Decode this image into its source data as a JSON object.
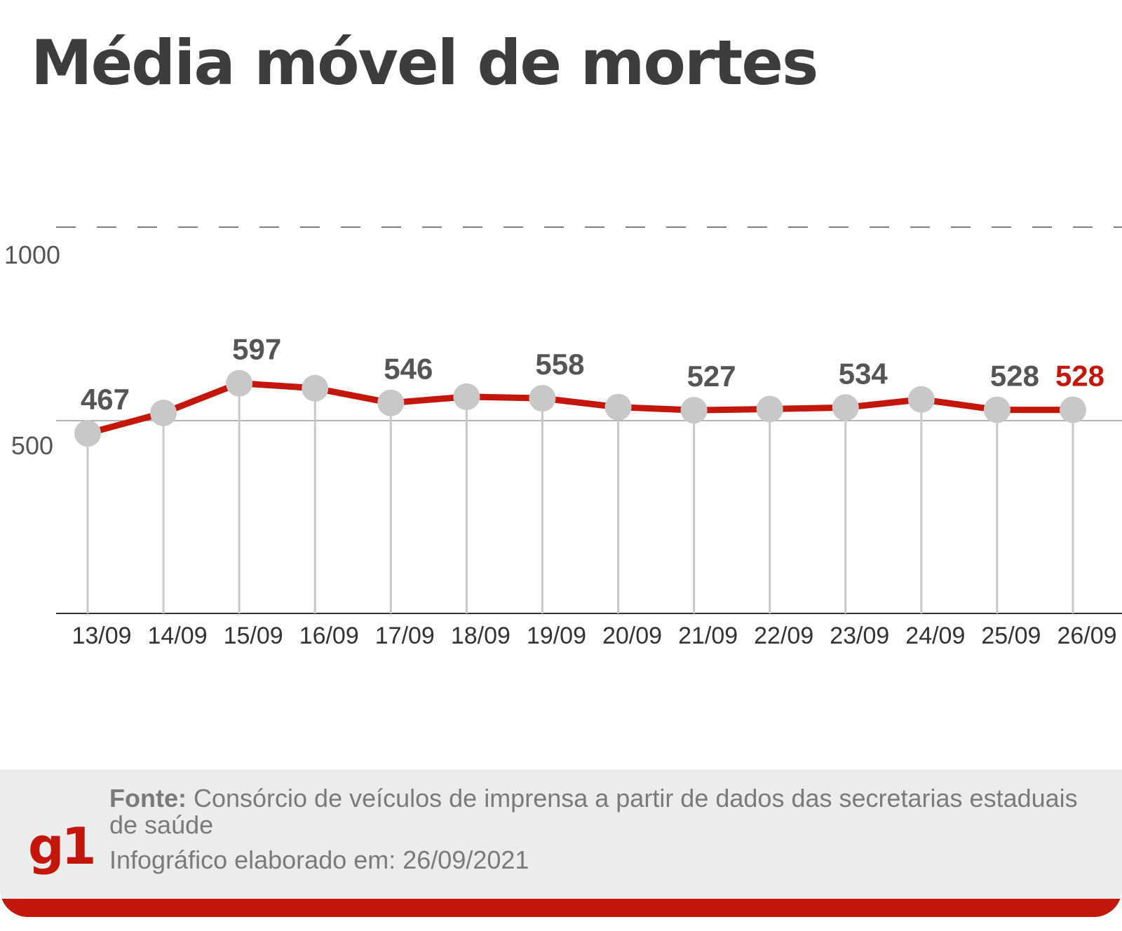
{
  "title": "Média móvel  de mortes",
  "chart_data": {
    "type": "line",
    "x": [
      "13/09",
      "14/09",
      "15/09",
      "16/09",
      "17/09",
      "18/09",
      "19/09",
      "20/09",
      "21/09",
      "22/09",
      "23/09",
      "24/09",
      "25/09",
      "26/09"
    ],
    "series": [
      {
        "values": [
          467,
          520,
          597,
          584,
          546,
          562,
          558,
          535,
          527,
          530,
          534,
          555,
          528,
          528
        ]
      }
    ],
    "labels": [
      {
        "index": 0,
        "text": "467"
      },
      {
        "index": 2,
        "text": "597"
      },
      {
        "index": 4,
        "text": "546"
      },
      {
        "index": 6,
        "text": "558"
      },
      {
        "index": 8,
        "text": "527"
      },
      {
        "index": 10,
        "text": "534"
      },
      {
        "index": 12,
        "text": "528"
      },
      {
        "index": 13,
        "text": "528",
        "highlight": true
      }
    ],
    "yticks": [
      "500",
      "1000"
    ],
    "ylim": [
      0,
      1000
    ],
    "colors": {
      "line": "#c4170c",
      "marker": "#c8c8c8",
      "stem": "#c8c8c8",
      "label": "#555555",
      "highlight": "#c4170c",
      "axis": "#333333"
    }
  },
  "footer": {
    "source_label": "Fonte:",
    "source_text": " Consórcio de veículos de imprensa a partir de dados das secretarias estaduais de saúde",
    "made_text": "Infográfico elaborado em: 26/09/2021",
    "logo": "g1"
  }
}
